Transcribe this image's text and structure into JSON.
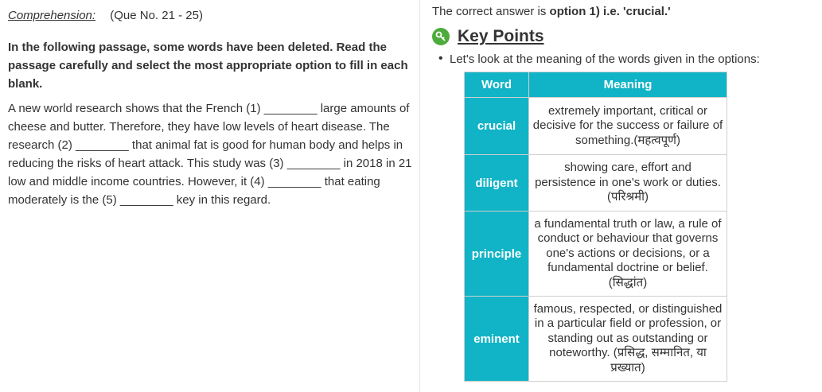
{
  "question": {
    "comprehension_label": "Comprehension:",
    "que_range": "(Que No. 21 - 25)",
    "instruction": "In the following passage, some words have been deleted. Read the passage carefully and select the most appropriate option to fill in each blank.",
    "passage": "A new world research shows that the French (1) ________ large amounts of cheese and butter. Therefore, they have low levels of heart disease. The research (2) ________ that animal fat is good for human body and helps in reducing the risks of heart attack. This study was (3) ________ in 2018 in 21 low and middle income countries. However, it (4) ________ that eating moderately is the (5) ________ key in this regard."
  },
  "solution": {
    "answer_prefix": "The correct answer is ",
    "answer_bold": "option 1) i.e. 'crucial.'",
    "key_points_title": "Key Points",
    "key_points_icon": "key-icon",
    "accent_color": "#11b4c6",
    "icon_color": "#4dab3b",
    "bullet": "Let's look at the meaning of the words given in the options:",
    "table": {
      "headers": [
        "Word",
        "Meaning"
      ],
      "rows": [
        {
          "word": "crucial",
          "meaning": "extremely important, critical or decisive for the success or failure of something.(महत्वपूर्ण)"
        },
        {
          "word": "diligent",
          "meaning": "showing care, effort and persistence in one's work or duties. (परिश्रमी)"
        },
        {
          "word": "principle",
          "meaning": "a fundamental truth or law, a rule of conduct or behaviour that governs one's actions or decisions, or a fundamental doctrine or belief. (सिद्धांत)"
        },
        {
          "word": "eminent",
          "meaning": "famous, respected, or distinguished in a particular field or profession, or standing out as outstanding or noteworthy. (प्रसिद्ध, सम्मानित, या प्रख्यात)"
        }
      ]
    }
  }
}
